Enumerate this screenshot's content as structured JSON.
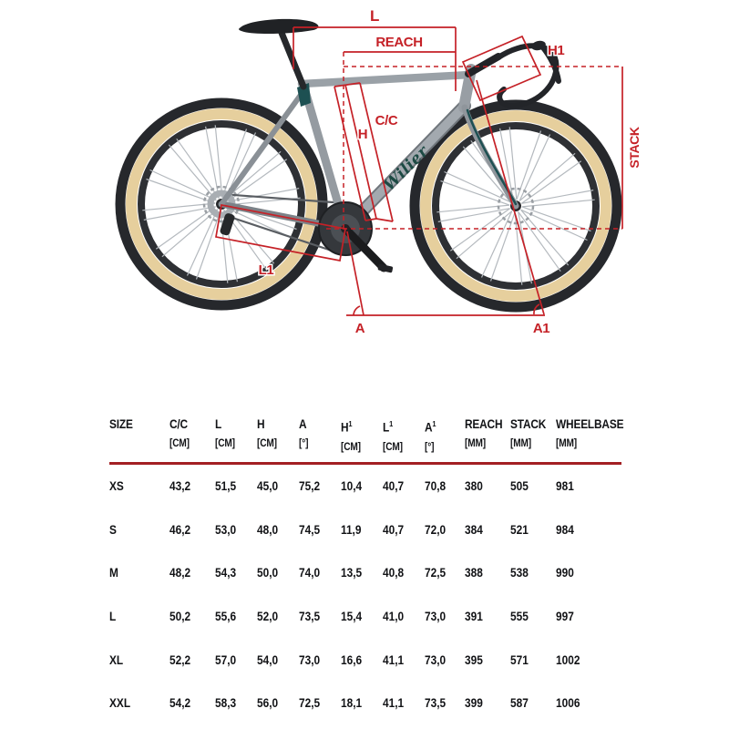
{
  "diagram": {
    "brand_logo": "Wilier",
    "labels": {
      "l": "L",
      "reach": "REACH",
      "h1": "H1",
      "h": "H",
      "cc": "C/C",
      "stack": "STACK",
      "l1": "L1",
      "a": "A",
      "a1": "A1"
    },
    "colors": {
      "annotation_red": "#c52127",
      "table_rule_red": "#a32024",
      "frame_silver": "#9aa0a6",
      "tire_tan": "#e6cf9d",
      "accent_teal": "#1d5052"
    }
  },
  "table": {
    "columns": [
      {
        "label": "SIZE",
        "sup": "",
        "unit": ""
      },
      {
        "label": "C/C",
        "sup": "",
        "unit": "[CM]"
      },
      {
        "label": "L",
        "sup": "",
        "unit": "[CM]"
      },
      {
        "label": "H",
        "sup": "",
        "unit": "[CM]"
      },
      {
        "label": "A",
        "sup": "",
        "unit": "[°]"
      },
      {
        "label": "H",
        "sup": "1",
        "unit": "[CM]"
      },
      {
        "label": "L",
        "sup": "1",
        "unit": "[CM]"
      },
      {
        "label": "A",
        "sup": "1",
        "unit": "[°]"
      },
      {
        "label": "REACH",
        "sup": "",
        "unit": "[MM]"
      },
      {
        "label": "STACK",
        "sup": "",
        "unit": "[MM]"
      },
      {
        "label": "WHEELBASE",
        "sup": "",
        "unit": "[MM]"
      }
    ],
    "rows": [
      {
        "size": "XS",
        "values": [
          "43,2",
          "51,5",
          "45,0",
          "75,2",
          "10,4",
          "40,7",
          "70,8",
          "380",
          "505",
          "981"
        ]
      },
      {
        "size": "S",
        "values": [
          "46,2",
          "53,0",
          "48,0",
          "74,5",
          "11,9",
          "40,7",
          "72,0",
          "384",
          "521",
          "984"
        ]
      },
      {
        "size": "M",
        "values": [
          "48,2",
          "54,3",
          "50,0",
          "74,0",
          "13,5",
          "40,8",
          "72,5",
          "388",
          "538",
          "990"
        ]
      },
      {
        "size": "L",
        "values": [
          "50,2",
          "55,6",
          "52,0",
          "73,5",
          "15,4",
          "41,0",
          "73,0",
          "391",
          "555",
          "997"
        ]
      },
      {
        "size": "XL",
        "values": [
          "52,2",
          "57,0",
          "54,0",
          "73,0",
          "16,6",
          "41,1",
          "73,0",
          "395",
          "571",
          "1002"
        ]
      },
      {
        "size": "XXL",
        "values": [
          "54,2",
          "58,3",
          "56,0",
          "72,5",
          "18,1",
          "41,1",
          "73,5",
          "399",
          "587",
          "1006"
        ]
      }
    ]
  }
}
